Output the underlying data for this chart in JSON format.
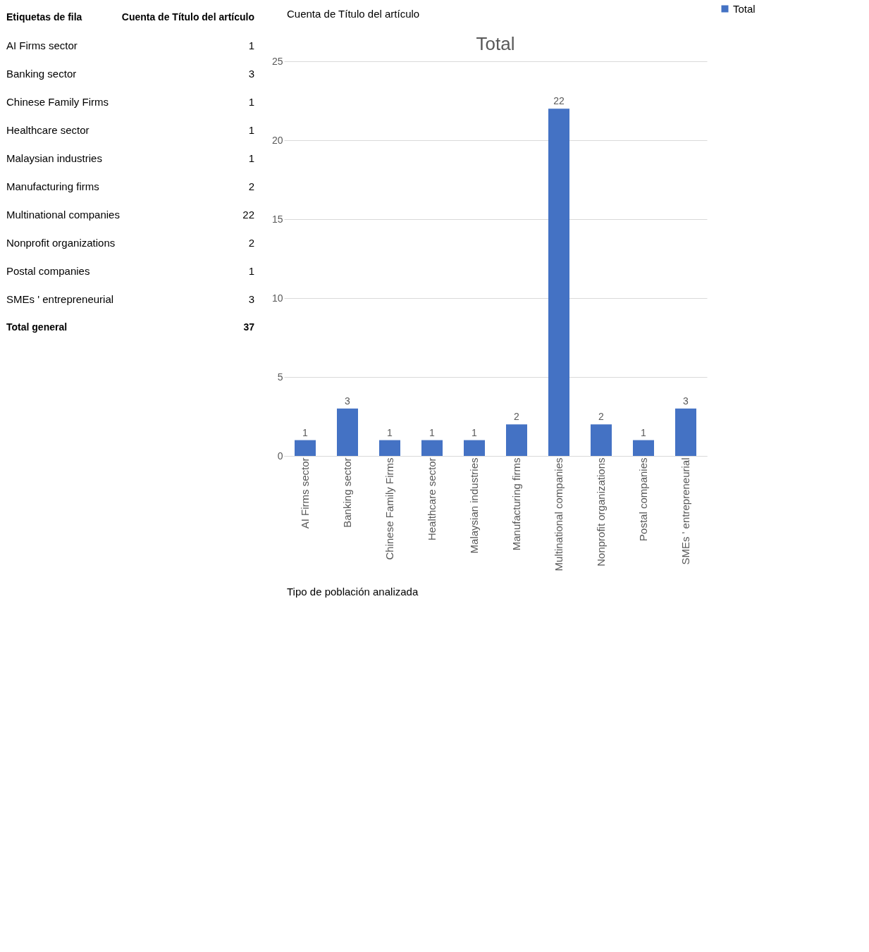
{
  "chart_data": [
    {
      "type": "other",
      "categories": [
        "AI Firms sector",
        "Banking sector",
        "Chinese Family Firms",
        "Healthcare sector",
        "Malaysian industries",
        "Manufacturing firms",
        "Multinational companies",
        "Nonprofit organizations",
        "Postal companies",
        "SMEs ' entrepreneurial"
      ],
      "values": [
        1,
        3,
        1,
        1,
        1,
        2,
        22,
        2,
        1,
        3
      ],
      "data_labels": true,
      "annotations": [
        "Etiquetas de fila",
        "Cuenta de Título del artículo",
        "Total general",
        "37"
      ]
    },
    {
      "type": "bar",
      "title": "Total",
      "categories": [
        "AI Firms sector",
        "Banking sector",
        "Chinese Family Firms",
        "Healthcare sector",
        "Malaysian industries",
        "Manufacturing firms",
        "Multinational companies",
        "Nonprofit organizations",
        "Postal companies",
        "SMEs ' entrepreneurial"
      ],
      "series": [
        {
          "name": "Total",
          "color": "#4472c4",
          "values": [
            1,
            3,
            1,
            1,
            1,
            2,
            22,
            2,
            1,
            3
          ]
        }
      ],
      "ylim": [
        0,
        25
      ],
      "yticks": [
        0,
        5,
        10,
        15,
        20,
        25
      ],
      "grid": "y",
      "legend": "right",
      "data_labels": true,
      "annotations": [
        "Cuenta de Título del artículo",
        "Tipo de población analizada"
      ]
    }
  ]
}
